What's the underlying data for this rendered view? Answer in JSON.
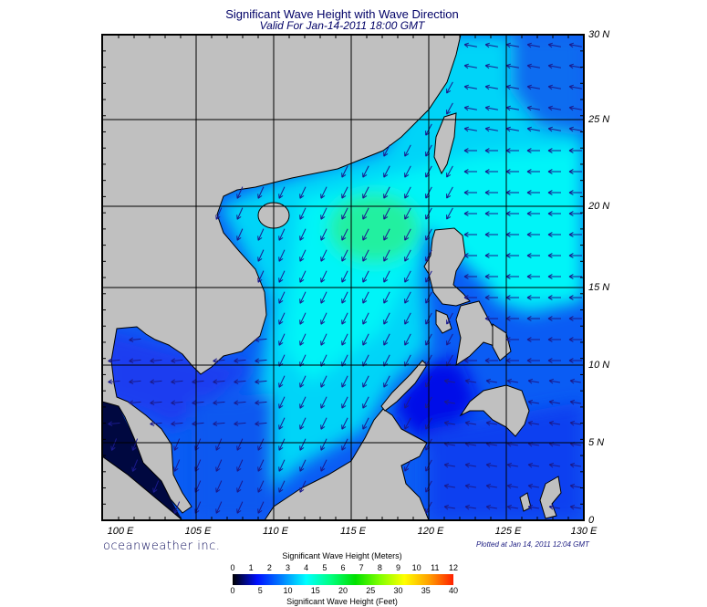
{
  "header": {
    "title": "Significant Wave Height with Wave Direction",
    "subtitle": "Valid For Jan-14-2011 18:00 GMT"
  },
  "axes": {
    "longitude_labels": [
      "100 E",
      "105 E",
      "110 E",
      "115 E",
      "120 E",
      "125 E",
      "130 E"
    ],
    "latitude_labels": [
      "30 N",
      "25 N",
      "20 N",
      "15 N",
      "10 N",
      "5 N",
      "0"
    ]
  },
  "footer": {
    "brand": "oceanweather inc.",
    "plotted": "Plotted at Jan 14, 2011 12:04 GMT"
  },
  "colorbar": {
    "meters_title": "Significant Wave Height (Meters)",
    "meters_ticks": [
      "0",
      "1",
      "2",
      "3",
      "4",
      "5",
      "6",
      "7",
      "8",
      "9",
      "10",
      "11",
      "12"
    ],
    "feet_title": "Significant Wave Height (Feet)",
    "feet_ticks": [
      "0",
      "5",
      "10",
      "15",
      "20",
      "25",
      "30",
      "35",
      "40"
    ],
    "colors": [
      "#000000",
      "#0010ff",
      "#0080ff",
      "#00ffff",
      "#00ff80",
      "#00e000",
      "#80ff00",
      "#ffff00",
      "#ffa000",
      "#ff2000"
    ]
  },
  "colors": {
    "land": "#c0c0c0",
    "arrow": "#1a1a8c",
    "grid": "#000000"
  }
}
